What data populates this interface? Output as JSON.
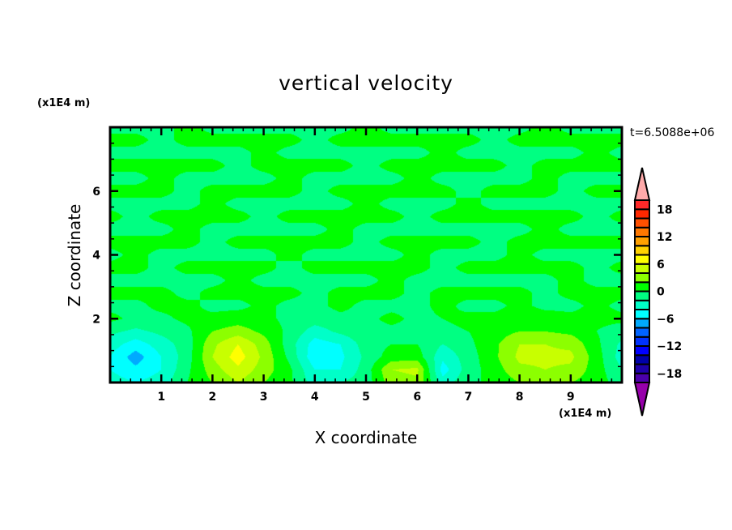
{
  "chart_data": {
    "type": "heatmap",
    "subtype": "filled-contour",
    "title": "vertical velocity",
    "xlabel": "X coordinate",
    "ylabel": "Z coordinate",
    "x_unit_label": "(x1E4 m)",
    "y_unit_label": "(x1E4 m)",
    "time_label": "t=6.5088e+06",
    "xlim": [
      0,
      10
    ],
    "ylim": [
      0,
      8
    ],
    "x_ticks": [
      1,
      2,
      3,
      4,
      5,
      6,
      7,
      8,
      9
    ],
    "y_ticks": [
      2,
      4,
      6
    ],
    "colorbar": {
      "levels": [
        -20,
        -18,
        -16,
        -14,
        -12,
        -10,
        -8,
        -6,
        -4,
        -2,
        0,
        2,
        4,
        6,
        8,
        10,
        12,
        14,
        16,
        18,
        20
      ],
      "tick_labels": [
        "18",
        "12",
        "6",
        "0",
        "-6",
        "-12",
        "-18"
      ],
      "tick_values": [
        18,
        12,
        6,
        0,
        -6,
        -12,
        -18
      ],
      "under_color": "#9600aa",
      "over_color": "#ffaaaa",
      "colors": [
        "#4b00aa",
        "#1e00aa",
        "#0000aa",
        "#0000ff",
        "#0032ff",
        "#0064ff",
        "#00aaff",
        "#00ffff",
        "#00ffc8",
        "#00ff82",
        "#00ff00",
        "#8cff00",
        "#c8ff00",
        "#ffff00",
        "#ffd200",
        "#ffa000",
        "#ff7800",
        "#ff5000",
        "#ff2800",
        "#ff2a2a"
      ],
      "extend": "both"
    },
    "grid_x": [
      0,
      0.5,
      1,
      1.5,
      2,
      2.5,
      3,
      3.5,
      4,
      4.5,
      5,
      5.5,
      6,
      6.5,
      7,
      7.5,
      8,
      8.5,
      9,
      9.5,
      10
    ],
    "grid_z": [
      0,
      0.4,
      0.8,
      1.2,
      1.6,
      2.0,
      2.4,
      2.8,
      3.2,
      3.6,
      4.0,
      4.4,
      4.8,
      5.2,
      5.6,
      6.0,
      6.4,
      6.8,
      7.2,
      7.6,
      8.0
    ],
    "values": [
      [
        -3,
        -4,
        -3,
        0,
        2,
        4,
        2,
        0.5,
        -3,
        -2,
        -1,
        3,
        3.5,
        -3,
        -0.5,
        0.5,
        2,
        3,
        2,
        1,
        -1
      ],
      [
        -4,
        -5.5,
        -4,
        -0.5,
        3,
        5.5,
        3,
        0.5,
        -4,
        -4,
        -1,
        4,
        4.5,
        -5,
        -1,
        1,
        3.5,
        4,
        3.5,
        1,
        -2
      ],
      [
        -4,
        -7,
        -4,
        -1,
        4,
        7,
        3.5,
        -0.5,
        -5.5,
        -4.5,
        -1.5,
        1,
        1,
        -3.5,
        -1,
        1.5,
        4.5,
        4.5,
        4.5,
        1,
        -3
      ],
      [
        -3,
        -5,
        -3,
        -1,
        3.5,
        6,
        3,
        -1,
        -5,
        -4,
        -1,
        0,
        0,
        -2,
        -0.5,
        1.5,
        4,
        4,
        3.5,
        0.5,
        -2.5
      ],
      [
        -1.5,
        -2.5,
        -1.5,
        -0.5,
        2,
        3,
        1.5,
        -0.5,
        -3,
        -1.5,
        -0.5,
        -0.5,
        -0.5,
        -0.5,
        0,
        1,
        2,
        2,
        1.5,
        0,
        -1
      ],
      [
        0.5,
        -0.5,
        -0.5,
        0.5,
        0.5,
        1,
        0.5,
        -0.5,
        -1,
        -0.5,
        -0.5,
        0.5,
        -0.5,
        0,
        0.5,
        0.5,
        1,
        1,
        0.5,
        0.5,
        0.5
      ],
      [
        -0.5,
        -0.5,
        0.5,
        0.5,
        -0.5,
        -0.5,
        0.5,
        -0.5,
        -0.5,
        0.5,
        -0.5,
        -0.5,
        -0.5,
        0.5,
        -0.5,
        -0.5,
        0.5,
        -0.5,
        -0.5,
        0.5,
        -0.5
      ],
      [
        0.5,
        0.5,
        0.5,
        -0.5,
        0.5,
        0.5,
        0.5,
        0.5,
        -0.5,
        0.5,
        0.5,
        0.5,
        -0.5,
        0.5,
        0.5,
        0.5,
        0.5,
        -0.5,
        0.5,
        0.5,
        0.5
      ],
      [
        -0.5,
        -0.5,
        -0.5,
        -0.5,
        -0.5,
        0.5,
        -0.5,
        -0.5,
        -0.5,
        -0.5,
        -0.5,
        0.5,
        -0.5,
        -0.5,
        -0.5,
        -0.5,
        -0.5,
        -0.5,
        0.5,
        -0.5,
        -0.5
      ],
      [
        0.5,
        0.5,
        -0.5,
        0.5,
        0.5,
        0.5,
        0.5,
        -0.5,
        0.5,
        0.5,
        0.5,
        0.5,
        0.5,
        -0.5,
        0.5,
        0.5,
        0.5,
        0.5,
        0.5,
        -0.5,
        0.5
      ],
      [
        -0.5,
        0.5,
        -0.5,
        -0.5,
        -0.5,
        -0.5,
        -0.5,
        0.5,
        -0.5,
        -0.5,
        -0.5,
        -0.5,
        0.5,
        -0.5,
        -0.5,
        -0.5,
        0.5,
        -0.5,
        -0.5,
        -0.5,
        -0.5
      ],
      [
        0.5,
        0.5,
        0.5,
        0.5,
        -0.5,
        0.5,
        0.5,
        0.5,
        0.5,
        0.5,
        -0.5,
        0.5,
        0.5,
        0.5,
        0.5,
        -0.5,
        0.5,
        0.5,
        0.5,
        0.5,
        0.5
      ],
      [
        -0.5,
        -0.5,
        -0.5,
        0.5,
        -0.5,
        -0.5,
        -0.5,
        -0.5,
        -0.5,
        0.5,
        -0.5,
        -0.5,
        -0.5,
        -0.5,
        -0.5,
        -0.5,
        -0.5,
        0.5,
        -0.5,
        -0.5,
        -0.5
      ],
      [
        0.5,
        -0.5,
        0.5,
        0.5,
        0.5,
        0.5,
        -0.5,
        0.5,
        0.5,
        0.5,
        0.5,
        0.5,
        -0.5,
        0.5,
        0.5,
        0.5,
        0.5,
        0.5,
        0.5,
        -0.5,
        0.5
      ],
      [
        -0.5,
        -0.5,
        -0.5,
        -0.5,
        0.5,
        -0.5,
        -0.5,
        -0.5,
        -0.5,
        -0.5,
        0.5,
        -0.5,
        -0.5,
        -0.5,
        0.5,
        -0.5,
        -0.5,
        -0.5,
        -0.5,
        -0.5,
        -0.5
      ],
      [
        0.5,
        0.5,
        0.5,
        -0.5,
        0.5,
        0.5,
        0.5,
        0.5,
        -0.5,
        0.5,
        0.5,
        0.5,
        0.5,
        0.5,
        -0.5,
        0.5,
        0.5,
        0.5,
        -0.5,
        0.5,
        0.5
      ],
      [
        -0.5,
        -0.5,
        0.5,
        -0.5,
        -0.5,
        -0.5,
        -0.5,
        0.5,
        -0.5,
        -0.5,
        -0.5,
        -0.5,
        0.5,
        -0.5,
        -0.5,
        -0.5,
        -0.5,
        0.5,
        -0.5,
        -0.5,
        -0.5
      ],
      [
        0.5,
        0.5,
        0.5,
        0.5,
        0.5,
        -0.5,
        0.5,
        0.5,
        0.5,
        0.5,
        -0.5,
        0.5,
        0.5,
        0.5,
        0.5,
        0.5,
        -0.5,
        0.5,
        0.5,
        0.5,
        0.5
      ],
      [
        -0.5,
        -0.5,
        -0.5,
        -0.5,
        -0.5,
        -0.5,
        0.5,
        -0.5,
        -0.5,
        -0.5,
        -0.5,
        -0.5,
        -0.5,
        0.5,
        -0.5,
        -0.5,
        -0.5,
        -0.5,
        -0.5,
        0.5,
        -0.5
      ],
      [
        0.5,
        0.5,
        -0.5,
        0.5,
        0.5,
        0.5,
        0.5,
        0.5,
        -0.5,
        0.5,
        0.5,
        0.5,
        0.5,
        0.5,
        0.5,
        -0.5,
        0.5,
        0.5,
        0.5,
        0.5,
        0.5
      ],
      [
        -0.5,
        -0.5,
        -0.5,
        0.5,
        -0.5,
        -0.5,
        -0.5,
        -0.5,
        -0.5,
        -0.5,
        0.5,
        -0.5,
        -0.5,
        -0.5,
        -0.5,
        -0.5,
        -0.5,
        0.5,
        -0.5,
        -0.5,
        -0.5
      ]
    ]
  }
}
